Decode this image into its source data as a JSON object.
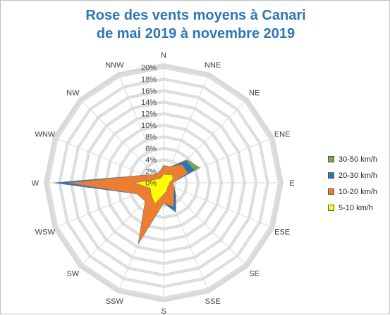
{
  "title": {
    "line1": "Rose des vents moyens à Canari",
    "line2": "de mai 2019 à novembre 2019"
  },
  "chart_data": {
    "type": "radar-area-stacked",
    "directions": [
      "N",
      "NNE",
      "NE",
      "ENE",
      "E",
      "ESE",
      "SE",
      "SSE",
      "S",
      "SSW",
      "SW",
      "WSW",
      "W",
      "WNW",
      "NW",
      "NNW"
    ],
    "radial_ticks": [
      "0%",
      "2%",
      "4%",
      "6%",
      "8%",
      "10%",
      "12%",
      "14%",
      "16%",
      "18%",
      "20%"
    ],
    "rmax": 20,
    "legend_position": "right",
    "series": [
      {
        "name": "5-10 km/h",
        "color": "#ffff00",
        "values": [
          1.5,
          1.5,
          2.0,
          1.8,
          1.0,
          1.0,
          1.0,
          1.5,
          2.0,
          4.0,
          3.0,
          2.5,
          5.0,
          1.5,
          1.0,
          1.0
        ]
      },
      {
        "name": "10-20 km/h",
        "color": "#ed7d31",
        "values": [
          3.0,
          3.0,
          4.5,
          4.5,
          1.5,
          2.0,
          2.5,
          4.5,
          3.5,
          11.5,
          4.5,
          5.0,
          16.5,
          3.5,
          2.0,
          2.0
        ]
      },
      {
        "name": "20-30 km/h",
        "color": "#2e75b6",
        "values": [
          3.0,
          3.0,
          5.5,
          5.8,
          1.5,
          2.0,
          3.0,
          5.5,
          3.5,
          11.5,
          4.5,
          5.0,
          19.0,
          3.5,
          2.0,
          2.0
        ]
      },
      {
        "name": "30-50 km/h",
        "color": "#70ad47",
        "values": [
          3.0,
          3.0,
          5.7,
          6.8,
          1.5,
          2.0,
          3.0,
          5.5,
          3.5,
          11.5,
          4.5,
          5.0,
          19.0,
          3.5,
          2.0,
          2.0
        ]
      }
    ]
  }
}
